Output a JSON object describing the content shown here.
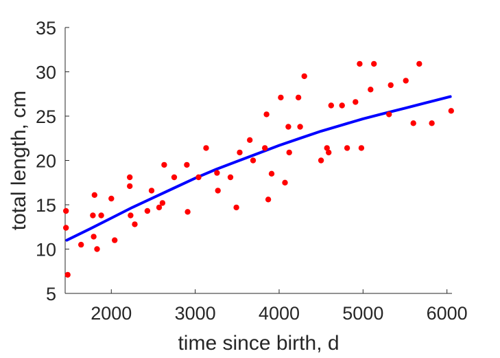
{
  "chart_data": {
    "type": "scatter",
    "title": "",
    "xlabel": "time since birth, d",
    "ylabel": "total length, cm",
    "xlim": [
      1450,
      6060
    ],
    "ylim": [
      5,
      35
    ],
    "xticks": [
      2000,
      3000,
      4000,
      5000,
      6000
    ],
    "yticks": [
      5,
      10,
      15,
      20,
      25,
      30,
      35
    ],
    "grid": false,
    "legend": "none",
    "colors": {
      "points": "#ff0000",
      "fit": "#0000ff",
      "axes": "#262626"
    },
    "series": [
      {
        "kind": "points",
        "x": [
          1460,
          1460,
          1480,
          1640,
          1780,
          1790,
          1800,
          1830,
          1880,
          2000,
          2040,
          2220,
          2220,
          2230,
          2280,
          2430,
          2480,
          2570,
          2610,
          2630,
          2750,
          2900,
          2910,
          3040,
          3130,
          3260,
          3270,
          3420,
          3490,
          3530,
          3650,
          3690,
          3830,
          3850,
          3870,
          3910,
          4020,
          4070,
          4110,
          4120,
          4230,
          4250,
          4300,
          4500,
          4570,
          4590,
          4620,
          4750,
          4810,
          4910,
          4960,
          4980,
          5090,
          5130,
          5310,
          5330,
          5510,
          5600,
          5670,
          5820,
          6050
        ],
        "y": [
          14.3,
          12.4,
          7.1,
          10.5,
          13.8,
          11.4,
          16.1,
          10.0,
          13.8,
          15.7,
          11.0,
          18.1,
          17.1,
          13.8,
          12.8,
          14.3,
          16.6,
          14.7,
          15.2,
          19.5,
          18.1,
          19.5,
          14.2,
          18.1,
          21.4,
          18.6,
          16.6,
          18.1,
          14.7,
          20.9,
          22.3,
          20.0,
          21.4,
          25.2,
          15.6,
          18.5,
          27.1,
          17.5,
          23.8,
          20.9,
          27.1,
          23.8,
          29.5,
          20.0,
          21.4,
          20.9,
          26.2,
          26.2,
          21.4,
          26.6,
          30.9,
          21.4,
          28.0,
          30.9,
          25.2,
          28.5,
          29.0,
          24.2,
          30.9,
          24.2,
          25.6
        ]
      },
      {
        "kind": "fit",
        "x": [
          1470,
          1750,
          2000,
          2250,
          2500,
          2750,
          3000,
          3250,
          3500,
          3750,
          4000,
          4250,
          4500,
          4750,
          5000,
          5250,
          5500,
          5750,
          6040
        ],
        "y": [
          11.0,
          12.3,
          13.5,
          14.7,
          15.8,
          16.9,
          18.0,
          19.0,
          19.9,
          20.8,
          21.7,
          22.5,
          23.3,
          24.0,
          24.7,
          25.3,
          25.9,
          26.5,
          27.2
        ]
      }
    ]
  }
}
